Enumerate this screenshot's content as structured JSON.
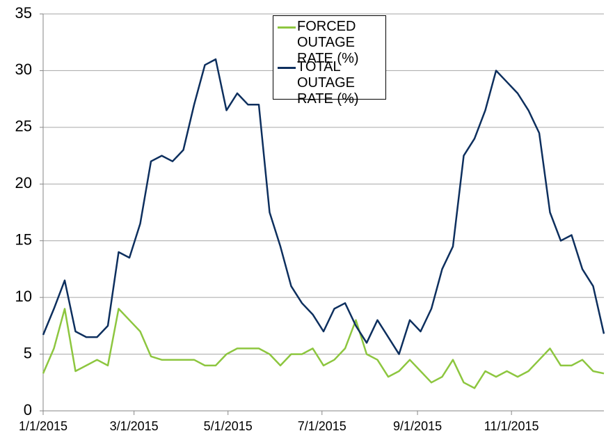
{
  "chart_data": {
    "type": "line",
    "x": [
      "1/1/2015",
      "1/8/2015",
      "1/15/2015",
      "1/22/2015",
      "1/29/2015",
      "2/5/2015",
      "2/12/2015",
      "2/19/2015",
      "2/26/2015",
      "3/5/2015",
      "3/12/2015",
      "3/19/2015",
      "3/26/2015",
      "4/2/2015",
      "4/9/2015",
      "4/16/2015",
      "4/23/2015",
      "4/30/2015",
      "5/7/2015",
      "5/14/2015",
      "5/21/2015",
      "5/28/2015",
      "6/4/2015",
      "6/11/2015",
      "6/18/2015",
      "6/25/2015",
      "7/2/2015",
      "7/9/2015",
      "7/16/2015",
      "7/23/2015",
      "7/30/2015",
      "8/6/2015",
      "8/13/2015",
      "8/20/2015",
      "8/27/2015",
      "9/3/2015",
      "9/10/2015",
      "9/17/2015",
      "9/24/2015",
      "10/1/2015",
      "10/8/2015",
      "10/15/2015",
      "10/22/2015",
      "10/29/2015",
      "11/5/2015",
      "11/12/2015",
      "11/19/2015",
      "11/26/2015",
      "12/3/2015",
      "12/10/2015",
      "12/17/2015",
      "12/24/2015",
      "12/31/2015"
    ],
    "series": [
      {
        "name": "FORCED OUTAGE RATE (%)",
        "color": "#8dc63f",
        "values": [
          3.3,
          5.5,
          9,
          3.5,
          4,
          4.5,
          4,
          9,
          8,
          7,
          4.8,
          4.5,
          4.5,
          4.5,
          4.5,
          4,
          4,
          5,
          5.5,
          5.5,
          5.5,
          5,
          4,
          5,
          5,
          5.5,
          4,
          4.5,
          5.5,
          8,
          5,
          4.5,
          3,
          3.5,
          4.5,
          3.5,
          2.5,
          3,
          4.5,
          2.5,
          2,
          3.5,
          3,
          3.5,
          3,
          3.5,
          4.5,
          5.5,
          4,
          4,
          4.5,
          3.5,
          3.3
        ]
      },
      {
        "name": "TOTAL OUTAGE RATE (%)",
        "color": "#0d2f5e",
        "values": [
          6.7,
          9,
          11.5,
          7,
          6.5,
          6.5,
          7.5,
          14,
          13.5,
          16.5,
          22,
          22.5,
          22,
          23,
          27,
          30.5,
          31,
          26.5,
          28,
          27,
          27,
          17.5,
          14.5,
          11,
          9.5,
          8.5,
          7,
          9,
          9.5,
          7.5,
          6,
          8,
          6.5,
          5,
          8,
          7,
          9,
          12.5,
          14.5,
          22.5,
          24,
          26.5,
          30,
          29,
          28,
          26.5,
          24.5,
          17.5,
          15,
          15.5,
          12.5,
          11,
          6.8
        ]
      }
    ],
    "xlim": [
      "1/1/2015",
      "12/31/2015"
    ],
    "xticks": [
      "1/1/2015",
      "3/1/2015",
      "5/1/2015",
      "7/1/2015",
      "9/1/2015",
      "11/1/2015"
    ],
    "ylim": [
      0,
      35
    ],
    "yticks": [
      0,
      5,
      10,
      15,
      20,
      25,
      30,
      35
    ],
    "grid": true
  }
}
